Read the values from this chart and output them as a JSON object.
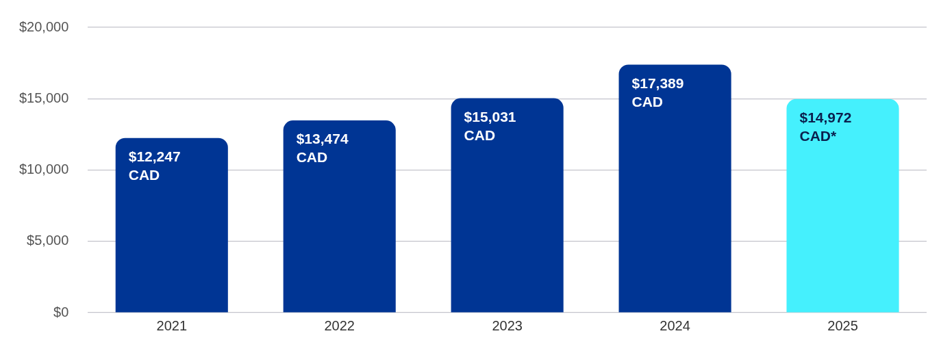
{
  "chart_data": {
    "type": "bar",
    "categories": [
      "2021",
      "2022",
      "2023",
      "2024",
      "2025"
    ],
    "values": [
      12247,
      13474,
      15031,
      17389,
      14972
    ],
    "colors": [
      "#003594",
      "#003594",
      "#003594",
      "#003594",
      "#45f0fd"
    ],
    "value_labels": [
      "$12,247 CAD",
      "$13,474 CAD",
      "$15,031 CAD",
      "$17,389 CAD",
      "$14,972 CAD*"
    ],
    "ylim": [
      0,
      20000
    ],
    "yticks": [
      {
        "value": 0,
        "label": "$0"
      },
      {
        "value": 5000,
        "label": "$5,000"
      },
      {
        "value": 10000,
        "label": "$10,000"
      },
      {
        "value": 15000,
        "label": "$15,000"
      },
      {
        "value": 20000,
        "label": "$20,000"
      }
    ],
    "grid": "y",
    "legend": false
  }
}
